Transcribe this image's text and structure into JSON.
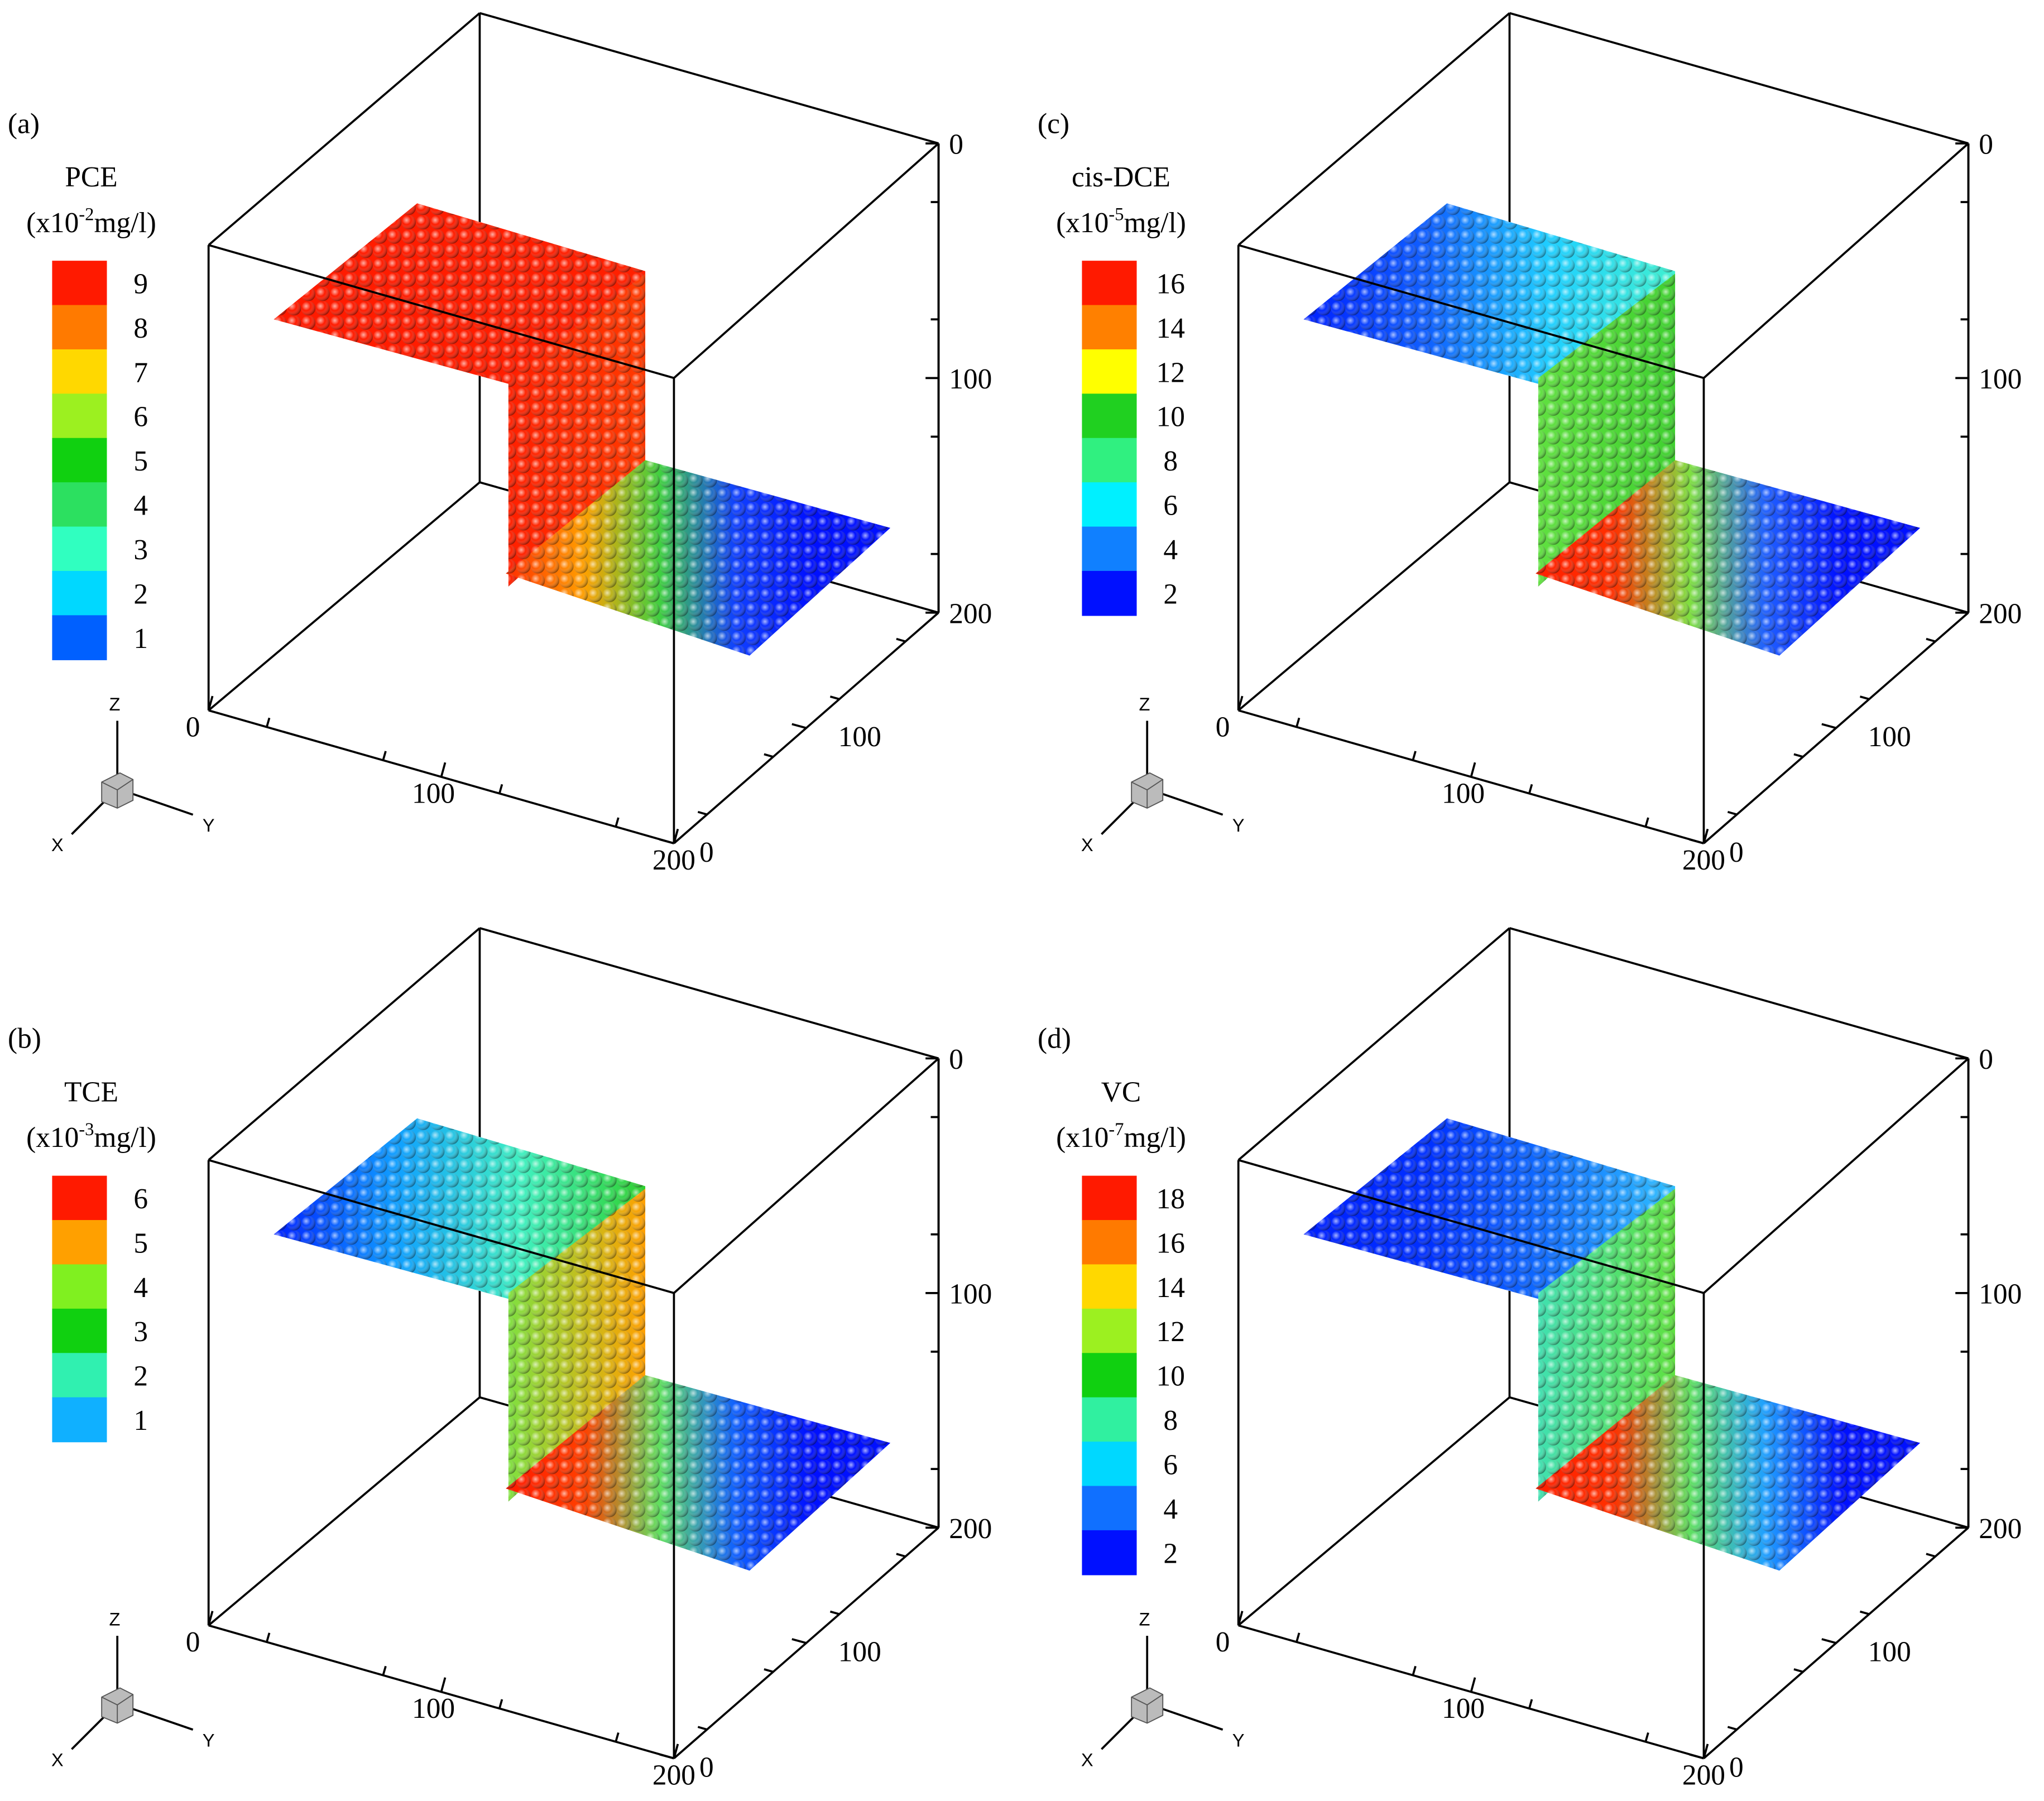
{
  "panels": [
    {
      "label": "(a)",
      "legend": {
        "title": "PCE",
        "unit_start": "(x10",
        "exponent": "-2",
        "unit_end": "mg/l)",
        "levels": [
          9,
          8,
          7,
          6,
          5,
          4,
          3,
          2,
          1
        ],
        "colors": [
          "#ff1a00",
          "#ff7a00",
          "#ffd800",
          "#9cf020",
          "#10d010",
          "#2ce060",
          "#30ffc0",
          "#00d8ff",
          "#0060ff"
        ]
      },
      "vertical_ticks": [
        0,
        100,
        200
      ],
      "front_ticks": [
        0,
        100,
        200
      ],
      "side_ticks": [
        0,
        100
      ],
      "triad": {
        "z": "Z",
        "y": "Y",
        "x": "X"
      }
    },
    {
      "label": "(c)",
      "legend": {
        "title": "cis-DCE",
        "unit_start": "(x10",
        "exponent": "-5",
        "unit_end": "mg/l)",
        "levels": [
          16,
          14,
          12,
          10,
          8,
          6,
          4,
          2
        ],
        "colors": [
          "#ff1a00",
          "#ff8000",
          "#ffff00",
          "#20d020",
          "#30f080",
          "#00f0ff",
          "#1080ff",
          "#0010ff"
        ]
      },
      "vertical_ticks": [
        0,
        100,
        200
      ],
      "front_ticks": [
        0,
        100,
        200
      ],
      "side_ticks": [
        0,
        100
      ],
      "triad": {
        "z": "Z",
        "y": "Y",
        "x": "X"
      }
    },
    {
      "label": "(b)",
      "legend": {
        "title": "TCE",
        "unit_start": "(x10",
        "exponent": "-3",
        "unit_end": "mg/l)",
        "levels": [
          6,
          5,
          4,
          3,
          2,
          1
        ],
        "colors": [
          "#ff1a00",
          "#ffa000",
          "#80f020",
          "#10d010",
          "#30f0b0",
          "#10b0ff"
        ]
      },
      "vertical_ticks": [
        0,
        100,
        200
      ],
      "front_ticks": [
        0,
        100,
        200
      ],
      "side_ticks": [
        0,
        100
      ],
      "triad": {
        "z": "Z",
        "y": "Y",
        "x": "X"
      }
    },
    {
      "label": "(d)",
      "legend": {
        "title": "VC",
        "unit_start": "(x10",
        "exponent": "-7",
        "unit_end": "mg/l)",
        "levels": [
          18,
          16,
          14,
          12,
          10,
          8,
          6,
          4,
          2
        ],
        "colors": [
          "#ff1a00",
          "#ff7a00",
          "#ffd800",
          "#9cf020",
          "#10d010",
          "#30f0a0",
          "#00d8ff",
          "#1070ff",
          "#0010ff"
        ]
      },
      "vertical_ticks": [
        0,
        100,
        200
      ],
      "front_ticks": [
        0,
        100,
        200
      ],
      "side_ticks": [
        0,
        100
      ],
      "triad": {
        "z": "Z",
        "y": "Y",
        "x": "X"
      }
    }
  ]
}
